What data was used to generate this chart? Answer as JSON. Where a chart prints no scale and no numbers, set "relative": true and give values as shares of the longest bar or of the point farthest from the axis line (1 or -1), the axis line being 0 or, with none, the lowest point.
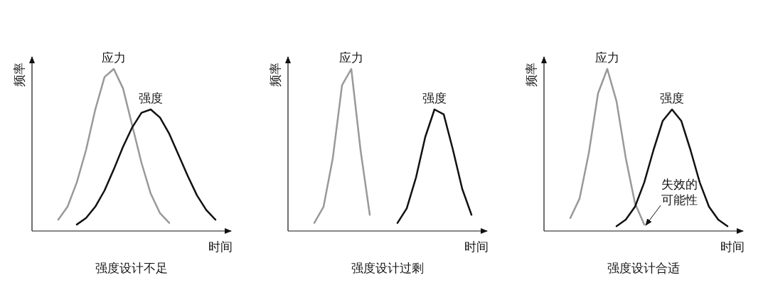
{
  "chart_data": [
    {
      "type": "line",
      "title": "强度设计不足",
      "xlabel": "时间",
      "ylabel": "频率",
      "relative": true,
      "categories": [
        null,
        null,
        null,
        null,
        null,
        null,
        null,
        null,
        null,
        null,
        null,
        null,
        null,
        null,
        null,
        null,
        null,
        null
      ],
      "series": [
        {
          "name": "应力",
          "color": "#999999",
          "values": [
            0.07,
            0.15,
            0.3,
            0.5,
            0.75,
            0.95,
            1.0,
            0.88,
            0.65,
            0.42,
            0.23,
            0.11,
            0.05,
            null,
            null,
            null,
            null,
            null
          ]
        },
        {
          "name": "强度",
          "color": "#111111",
          "values": [
            null,
            null,
            0.04,
            0.08,
            0.15,
            0.25,
            0.38,
            0.52,
            0.64,
            0.73,
            0.75,
            0.7,
            0.6,
            0.47,
            0.34,
            0.22,
            0.13,
            0.07
          ]
        }
      ]
    },
    {
      "type": "line",
      "title": "强度设计过剩",
      "xlabel": "时间",
      "ylabel": "频率",
      "relative": true,
      "categories": [
        null,
        null,
        null,
        null,
        null,
        null,
        null,
        null,
        null,
        null,
        null,
        null,
        null,
        null,
        null,
        null,
        null,
        null
      ],
      "series": [
        {
          "name": "应力",
          "color": "#999999",
          "values": [
            0.05,
            0.15,
            0.45,
            0.9,
            1.0,
            0.5,
            0.1,
            null,
            null,
            null,
            null,
            null,
            null,
            null,
            null,
            null,
            null,
            null
          ]
        },
        {
          "name": "强度",
          "color": "#111111",
          "values": [
            null,
            null,
            null,
            null,
            null,
            null,
            null,
            null,
            null,
            0.05,
            0.14,
            0.33,
            0.58,
            0.75,
            0.72,
            0.5,
            0.26,
            0.1
          ]
        }
      ]
    },
    {
      "type": "line",
      "title": "强度设计合适",
      "xlabel": "时间",
      "ylabel": "频率",
      "relative": true,
      "annotations": [
        "失效的可能性"
      ],
      "categories": [
        null,
        null,
        null,
        null,
        null,
        null,
        null,
        null,
        null,
        null,
        null,
        null,
        null,
        null,
        null,
        null,
        null,
        null
      ],
      "series": [
        {
          "name": "应力",
          "color": "#999999",
          "values": [
            0.08,
            0.2,
            0.48,
            0.85,
            1.0,
            0.8,
            0.45,
            0.17,
            0.04,
            null,
            null,
            null,
            null,
            null,
            null,
            null,
            null,
            null
          ]
        },
        {
          "name": "强度",
          "color": "#111111",
          "values": [
            null,
            null,
            null,
            null,
            null,
            0.03,
            0.07,
            0.15,
            0.3,
            0.5,
            0.68,
            0.75,
            0.68,
            0.5,
            0.3,
            0.15,
            0.07,
            0.03
          ]
        }
      ]
    }
  ]
}
